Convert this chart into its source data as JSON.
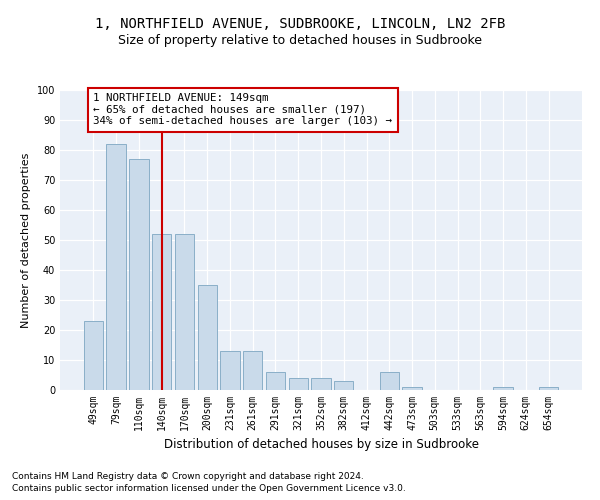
{
  "title1": "1, NORTHFIELD AVENUE, SUDBROOKE, LINCOLN, LN2 2FB",
  "title2": "Size of property relative to detached houses in Sudbrooke",
  "xlabel": "Distribution of detached houses by size in Sudbrooke",
  "ylabel": "Number of detached properties",
  "categories": [
    "49sqm",
    "79sqm",
    "110sqm",
    "140sqm",
    "170sqm",
    "200sqm",
    "231sqm",
    "261sqm",
    "291sqm",
    "321sqm",
    "352sqm",
    "382sqm",
    "412sqm",
    "442sqm",
    "473sqm",
    "503sqm",
    "533sqm",
    "563sqm",
    "594sqm",
    "624sqm",
    "654sqm"
  ],
  "values": [
    23,
    82,
    77,
    52,
    52,
    35,
    13,
    13,
    6,
    4,
    4,
    3,
    0,
    6,
    1,
    0,
    0,
    0,
    1,
    0,
    1
  ],
  "bar_color": "#c9daea",
  "bar_edge_color": "#8aafc8",
  "vline_x_idx": 3,
  "vline_color": "#cc0000",
  "annotation_line1": "1 NORTHFIELD AVENUE: 149sqm",
  "annotation_line2": "← 65% of detached houses are smaller (197)",
  "annotation_line3": "34% of semi-detached houses are larger (103) →",
  "annotation_box_color": "#cc0000",
  "ylim": [
    0,
    100
  ],
  "yticks": [
    0,
    10,
    20,
    30,
    40,
    50,
    60,
    70,
    80,
    90,
    100
  ],
  "footer1": "Contains HM Land Registry data © Crown copyright and database right 2024.",
  "footer2": "Contains public sector information licensed under the Open Government Licence v3.0.",
  "bg_color": "#eaf0f8",
  "fig_bg_color": "#ffffff",
  "title1_fontsize": 10,
  "title2_fontsize": 9,
  "xlabel_fontsize": 8.5,
  "ylabel_fontsize": 8,
  "footer_fontsize": 6.5,
  "annot_fontsize": 7.8,
  "tick_fontsize": 7
}
